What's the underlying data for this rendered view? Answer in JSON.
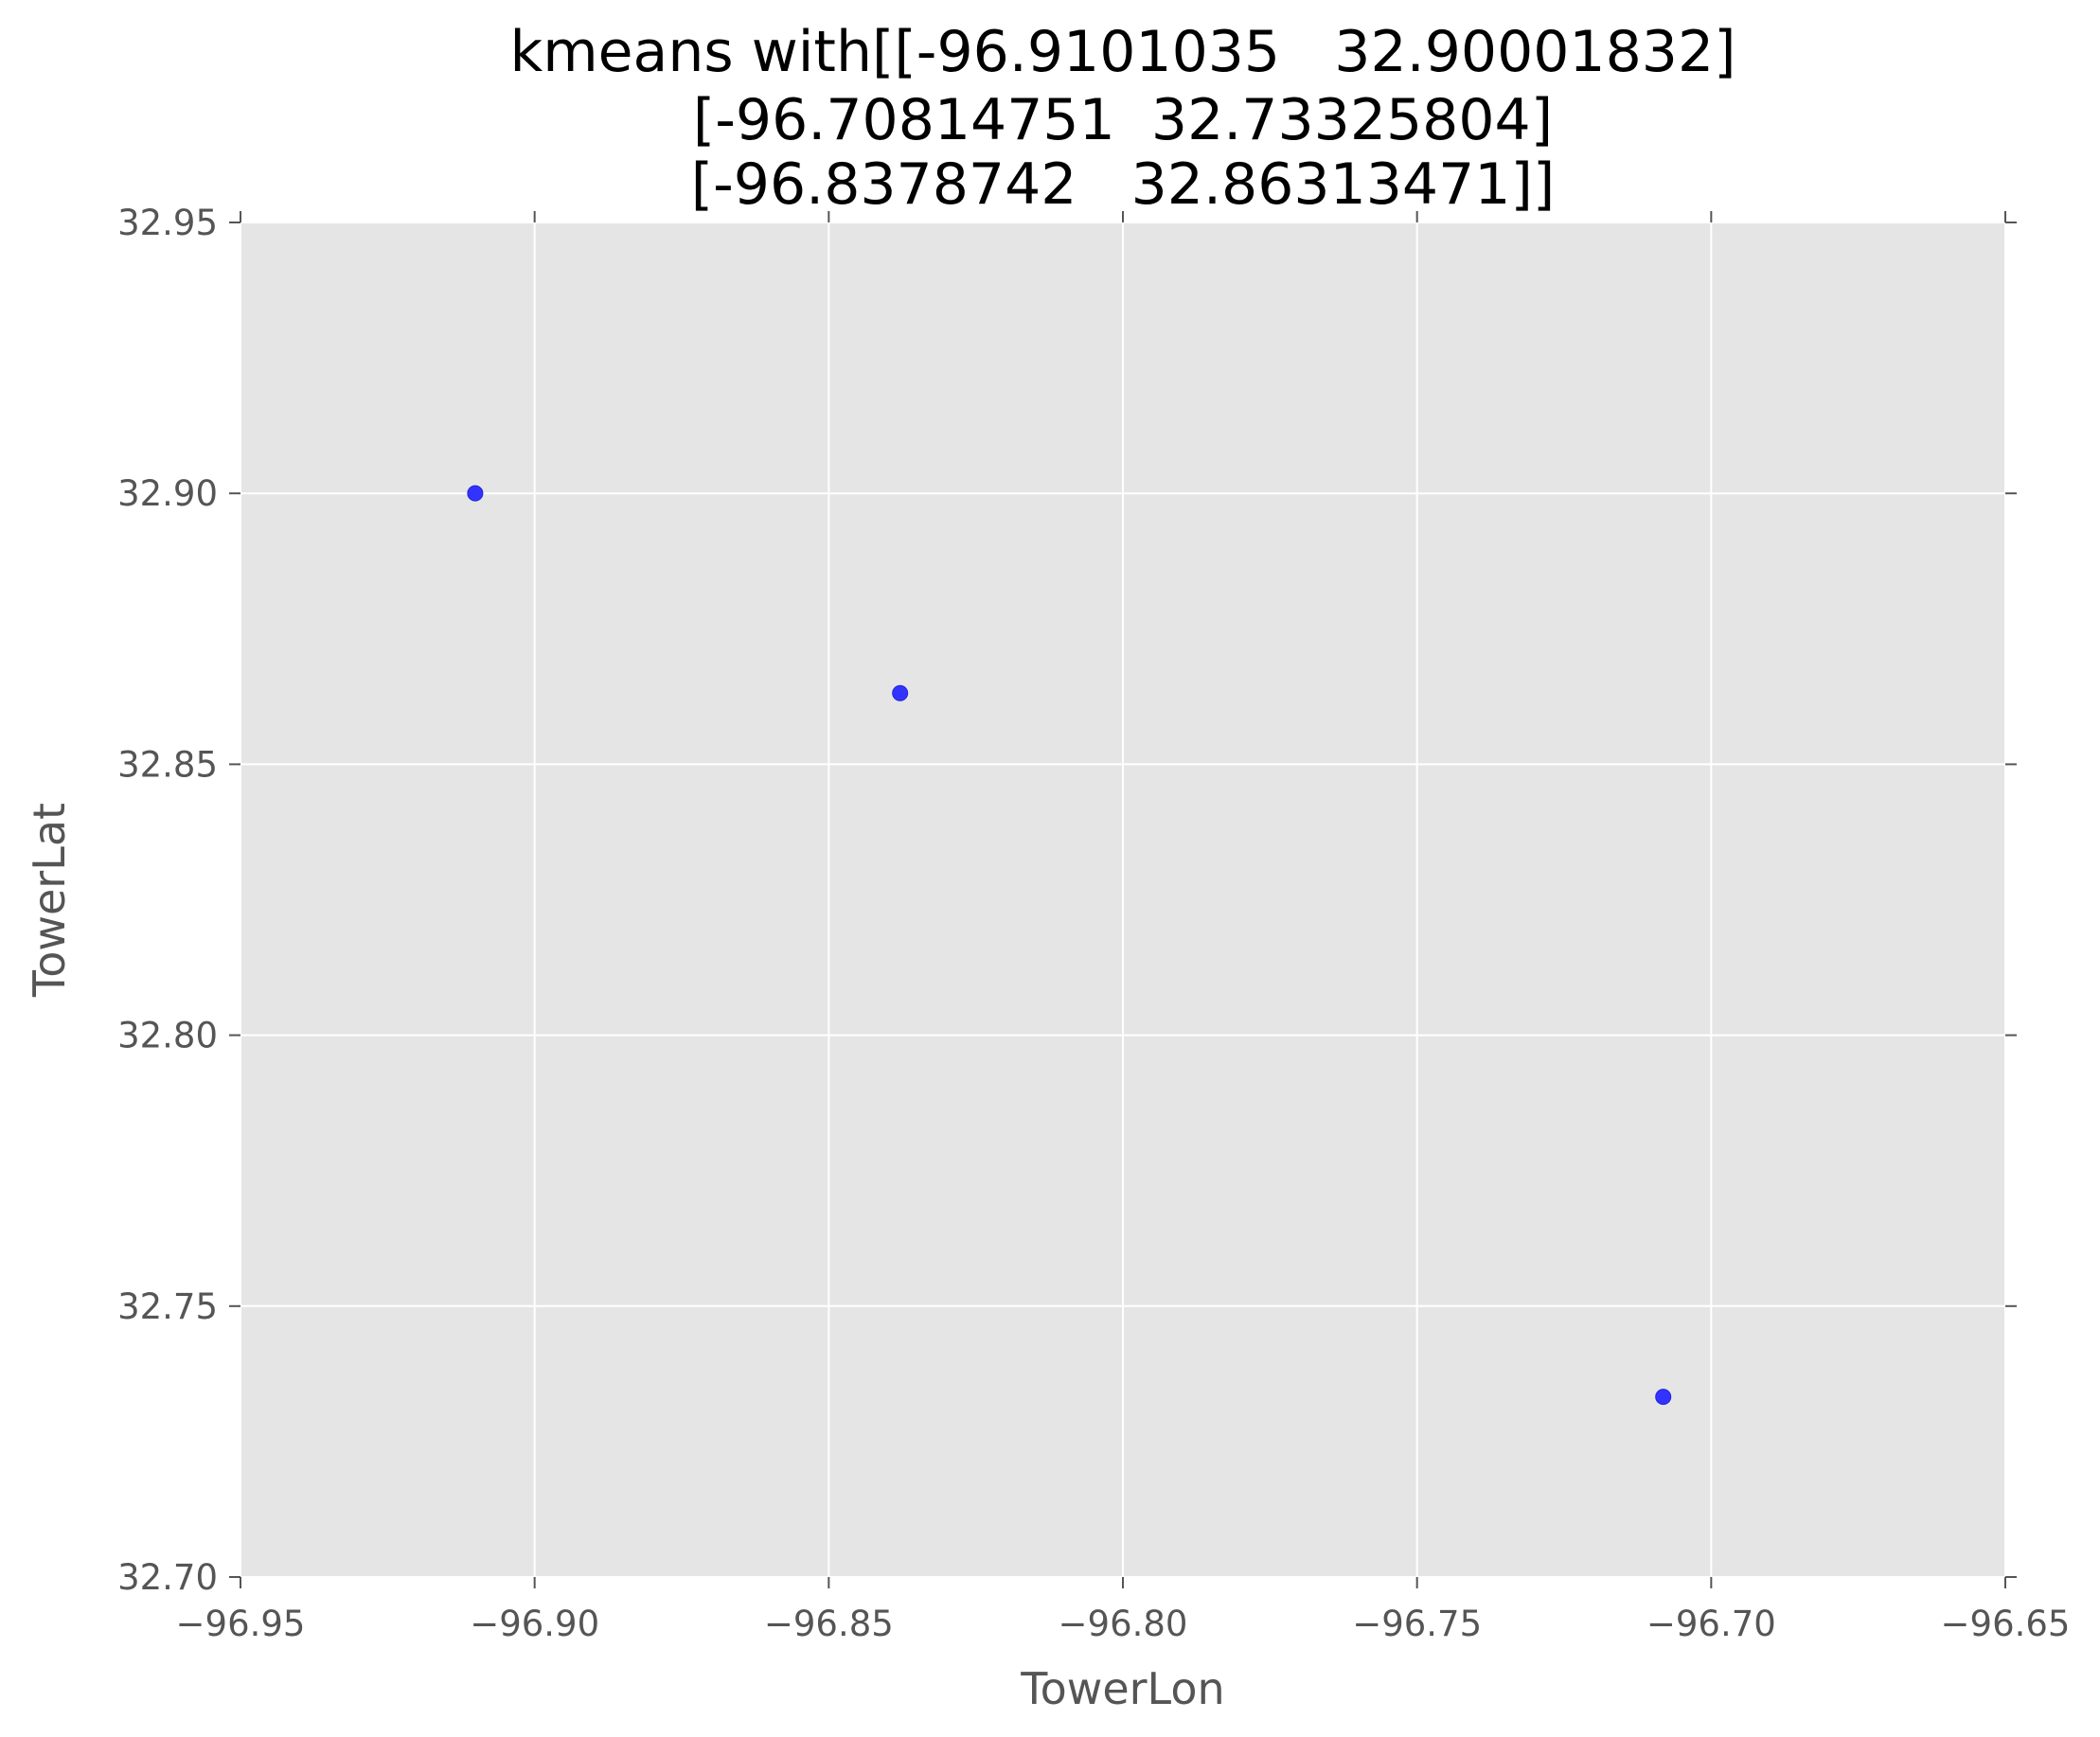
{
  "chart_data": {
    "type": "scatter",
    "title_lines": [
      "kmeans with[[-96.9101035   32.90001832]",
      "[-96.70814751  32.73325804]",
      "[-96.8378742   32.86313471]]"
    ],
    "xlabel": "TowerLon",
    "ylabel": "TowerLat",
    "xlim": [
      -96.95,
      -96.65
    ],
    "ylim": [
      32.7,
      32.95
    ],
    "xticks": [
      -96.95,
      -96.9,
      -96.85,
      -96.8,
      -96.75,
      -96.7,
      -96.65
    ],
    "xtick_labels": [
      "−96.95",
      "−96.90",
      "−96.85",
      "−96.80",
      "−96.75",
      "−96.70",
      "−96.65"
    ],
    "yticks": [
      32.7,
      32.75,
      32.8,
      32.85,
      32.9,
      32.95
    ],
    "ytick_labels": [
      "32.70",
      "32.75",
      "32.80",
      "32.85",
      "32.90",
      "32.95"
    ],
    "grid": true,
    "colors": {
      "background": "#e5e5e5",
      "grid": "#ffffff",
      "point": "#3333ff"
    },
    "points": [
      {
        "x": -96.9101035,
        "y": 32.90001832
      },
      {
        "x": -96.70814751,
        "y": 32.73325804
      },
      {
        "x": -96.8378742,
        "y": 32.86313471
      }
    ]
  }
}
